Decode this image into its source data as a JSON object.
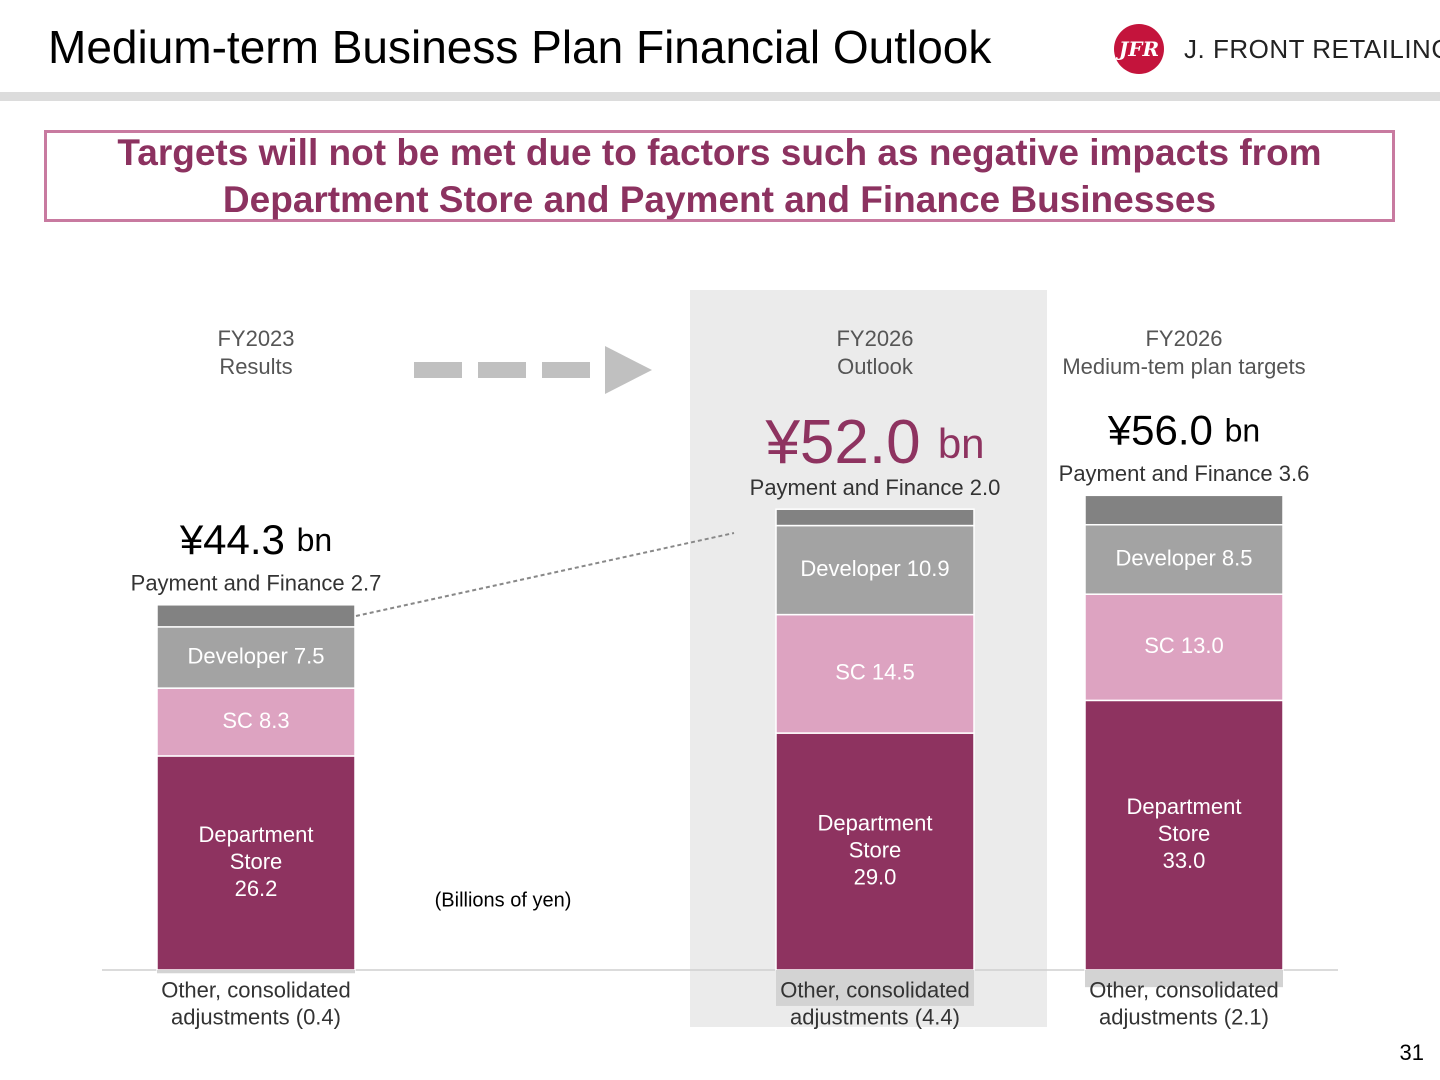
{
  "header": {
    "title": "Medium-term Business Plan Financial Outlook",
    "logo_mark": "JFR",
    "logo_name": "J. FRONT RETAILING"
  },
  "banner": {
    "line1": "Targets will not be met due to factors such as negative impacts from",
    "line2": "Department Store and Payment and Finance Businesses"
  },
  "page_number": "31",
  "colors": {
    "department_store": "#8e3360",
    "sc": "#dda3c1",
    "developer": "#a3a3a3",
    "payment_finance": "#828282",
    "other_adjustments": "#d3d3d3",
    "highlight_panel": "#ebebeb",
    "outlook_total": "#8e3360",
    "arrow": "#c0c0c0"
  },
  "chart_data": {
    "type": "bar",
    "stacked": true,
    "unit": "(Billions of yen)",
    "categories": [
      {
        "line1": "FY2023",
        "line2": "Results",
        "total_main": "¥44.3",
        "total_unit": "bn",
        "highlight": false
      },
      {
        "line1": "FY2026",
        "line2": "Outlook",
        "total_main": "¥52.0",
        "total_unit": "bn",
        "highlight": true
      },
      {
        "line1": "FY2026",
        "line2": "Medium-tem plan targets",
        "total_main": "¥56.0",
        "total_unit": "bn",
        "highlight": false
      }
    ],
    "series": [
      {
        "key": "department_store",
        "values": [
          26.2,
          29.0,
          33.0
        ],
        "labels": [
          [
            "Department",
            "Store",
            "26.2"
          ],
          [
            "Department",
            "Store",
            "29.0"
          ],
          [
            "Department",
            "Store",
            "33.0"
          ]
        ]
      },
      {
        "key": "sc",
        "values": [
          8.3,
          14.5,
          13.0
        ],
        "labels": [
          [
            "SC 8.3"
          ],
          [
            "SC 14.5"
          ],
          [
            "SC 13.0"
          ]
        ]
      },
      {
        "key": "developer",
        "values": [
          7.5,
          10.9,
          8.5
        ],
        "labels": [
          [
            "Developer 7.5"
          ],
          [
            "Developer 10.9"
          ],
          [
            "Developer 8.5"
          ]
        ]
      },
      {
        "key": "payment_finance",
        "values": [
          2.7,
          2.0,
          3.6
        ],
        "labels": [
          [
            "Payment and Finance 2.7"
          ],
          [
            "Payment and Finance 2.0"
          ],
          [
            "Payment and Finance 3.6"
          ]
        ]
      },
      {
        "key": "other_adjustments",
        "values": [
          -0.4,
          -4.4,
          -2.1
        ],
        "labels": [
          [
            "Other, consolidated",
            "adjustments (0.4)"
          ],
          [
            "Other, consolidated",
            "adjustments (4.4)"
          ],
          [
            "Other, consolidated",
            "adjustments (2.1)"
          ]
        ]
      }
    ],
    "totals": [
      44.3,
      52.0,
      56.0
    ]
  }
}
